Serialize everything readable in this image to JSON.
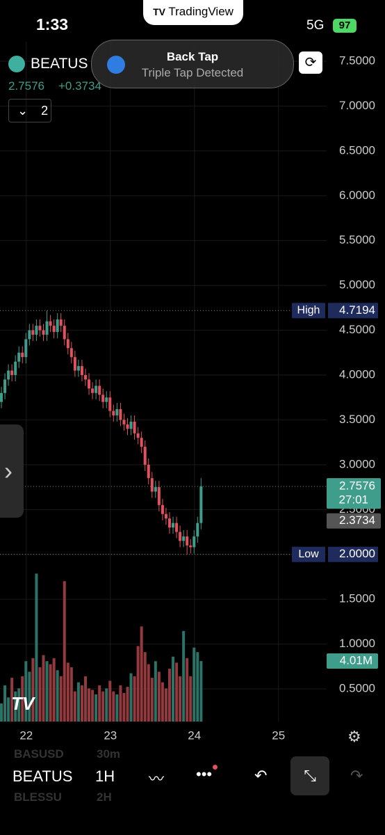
{
  "status_bar": {
    "time": "1:33",
    "network": "5G",
    "battery": "97"
  },
  "app_pill": {
    "title": "TradingView"
  },
  "notification": {
    "title": "Back Tap",
    "subtitle": "Triple Tap Detected"
  },
  "header": {
    "symbol": "BEATUS",
    "price": "2.7576",
    "change": "+0.3734",
    "indicator_count": "2"
  },
  "chart_data": {
    "type": "candlestick",
    "open": [
      3.7,
      3.8,
      3.95,
      4.05,
      4.0,
      4.15,
      4.25,
      4.2,
      4.4,
      4.5,
      4.45,
      4.55,
      4.5,
      4.45,
      4.6,
      4.55,
      4.48,
      4.62,
      4.55,
      4.4,
      4.3,
      4.2,
      4.05,
      4.1,
      4.0,
      3.95,
      3.85,
      3.8,
      3.88,
      3.78,
      3.7,
      3.75,
      3.6,
      3.55,
      3.62,
      3.5,
      3.45,
      3.4,
      3.48,
      3.35,
      3.3,
      3.2,
      3.0,
      2.85,
      2.7,
      2.75,
      2.55,
      2.45,
      2.4,
      2.3,
      2.35,
      2.25,
      2.15,
      2.2,
      2.1,
      2.08,
      2.2,
      2.35
    ],
    "high": [
      3.87,
      4.02,
      4.12,
      4.12,
      4.22,
      4.32,
      4.32,
      4.47,
      4.57,
      4.57,
      4.62,
      4.62,
      4.57,
      4.7194,
      4.67,
      4.62,
      4.69,
      4.69,
      4.62,
      4.47,
      4.37,
      4.27,
      4.17,
      4.17,
      4.07,
      4.02,
      3.92,
      3.95,
      3.95,
      3.85,
      3.82,
      3.82,
      3.67,
      3.69,
      3.69,
      3.57,
      3.52,
      3.55,
      3.55,
      3.42,
      3.37,
      3.27,
      3.07,
      2.92,
      2.82,
      2.82,
      2.62,
      2.52,
      2.47,
      2.42,
      2.42,
      2.32,
      2.27,
      2.27,
      2.17,
      2.27,
      2.42,
      2.85
    ],
    "low": [
      3.63,
      3.73,
      3.88,
      3.93,
      3.93,
      4.08,
      4.13,
      4.13,
      4.33,
      4.38,
      4.38,
      4.43,
      4.38,
      4.38,
      4.48,
      4.41,
      4.41,
      4.48,
      4.33,
      4.23,
      4.13,
      3.98,
      3.98,
      3.93,
      3.88,
      3.78,
      3.73,
      3.73,
      3.71,
      3.63,
      3.63,
      3.53,
      3.48,
      3.48,
      3.43,
      3.38,
      3.33,
      3.33,
      3.28,
      3.23,
      3.13,
      2.93,
      2.78,
      2.63,
      2.63,
      2.48,
      2.38,
      2.33,
      2.23,
      2.23,
      2.18,
      2.08,
      2.08,
      2.0,
      2.01,
      2.01,
      2.13,
      2.28
    ],
    "close": [
      3.8,
      3.95,
      4.05,
      4.0,
      4.15,
      4.25,
      4.2,
      4.4,
      4.5,
      4.45,
      4.55,
      4.5,
      4.45,
      4.6,
      4.55,
      4.48,
      4.62,
      4.55,
      4.4,
      4.3,
      4.2,
      4.05,
      4.1,
      4.0,
      3.95,
      3.85,
      3.8,
      3.88,
      3.78,
      3.7,
      3.75,
      3.6,
      3.55,
      3.62,
      3.5,
      3.45,
      3.4,
      3.48,
      3.35,
      3.3,
      3.2,
      3.0,
      2.85,
      2.7,
      2.75,
      2.55,
      2.45,
      2.4,
      2.3,
      2.35,
      2.25,
      2.15,
      2.2,
      2.1,
      2.08,
      2.2,
      2.35,
      2.7576
    ],
    "volume": [
      1.2,
      2.4,
      1.6,
      2.9,
      2.0,
      2.2,
      3.0,
      4.0,
      3.3,
      4.2,
      9.8,
      3.6,
      4.4,
      4.0,
      3.8,
      4.2,
      3.4,
      3.0,
      9.3,
      3.9,
      3.6,
      2.0,
      2.6,
      2.4,
      3.0,
      2.2,
      2.1,
      1.8,
      2.4,
      2.0,
      2.2,
      2.7,
      2.0,
      1.8,
      2.4,
      1.9,
      2.3,
      3.2,
      3.0,
      5.0,
      6.3,
      4.6,
      3.8,
      2.9,
      4.0,
      3.3,
      2.6,
      2.2,
      3.5,
      4.3,
      3.9,
      3.0,
      6.0,
      4.2,
      3.0,
      4.9,
      4.6,
      4.01
    ],
    "volume_label": "4.01M",
    "up_color": "#3f9e8b",
    "down_color": "#e0525e",
    "volume_up_color": "#2b7366",
    "volume_down_color": "#94393d",
    "ylim": [
      0.5,
      7.5
    ],
    "yticks": [
      {
        "value": 7.5,
        "label": "7.5000"
      },
      {
        "value": 7.0,
        "label": "7.0000"
      },
      {
        "value": 6.5,
        "label": "6.5000"
      },
      {
        "value": 6.0,
        "label": "6.0000"
      },
      {
        "value": 5.5,
        "label": "5.5000"
      },
      {
        "value": 5.0,
        "label": "5.0000"
      },
      {
        "value": 4.5,
        "label": "4.5000"
      },
      {
        "value": 4.0,
        "label": "4.0000"
      },
      {
        "value": 3.5,
        "label": "3.5000"
      },
      {
        "value": 3.0,
        "label": "3.0000"
      },
      {
        "value": 2.5,
        "label": "2.5000"
      },
      {
        "value": 2.0,
        "label": "2.0000"
      },
      {
        "value": 1.5,
        "label": "1.5000"
      },
      {
        "value": 1.0,
        "label": "1.0000"
      },
      {
        "value": 0.5,
        "label": "0.5000"
      }
    ],
    "xlim": [
      -0.4,
      109.5
    ],
    "xticks": [
      {
        "value": 7.1,
        "label": "22"
      },
      {
        "value": 31.1,
        "label": "23"
      },
      {
        "value": 55.1,
        "label": "24"
      },
      {
        "value": 79.1,
        "label": "25"
      }
    ],
    "grid": true,
    "markers": [
      {
        "label": "High",
        "value": 4.7194,
        "value_label": "4.7194"
      },
      {
        "label": "Low",
        "value": 2.0,
        "value_label": "2.0000"
      }
    ],
    "last_price": {
      "value": 2.7576,
      "value_label": "2.7576",
      "countdown": "27:01"
    },
    "ref_price": {
      "value": 2.3734,
      "value_label": "2.3734"
    }
  },
  "toolbar": {
    "symbol": "BEATUS",
    "interval": "1H",
    "prev_symbol": "BASUSD",
    "prev_interval": "30m",
    "next_symbol": "BLESSU",
    "next_interval": "2H"
  }
}
